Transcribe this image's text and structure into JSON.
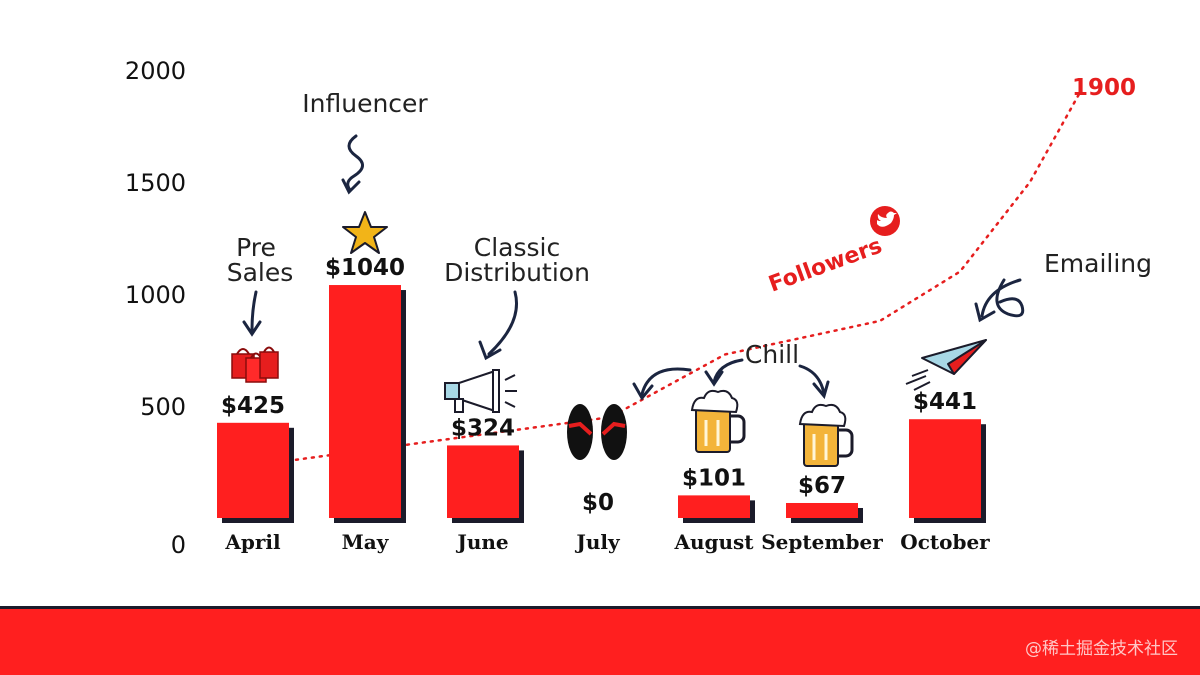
{
  "chart_data": {
    "type": "bar",
    "categories": [
      "April",
      "May",
      "June",
      "July",
      "August",
      "September",
      "October"
    ],
    "values": [
      425,
      1040,
      324,
      0,
      101,
      67,
      441
    ],
    "value_labels": [
      "$425",
      "$1040",
      "$324",
      "$0",
      "$101",
      "$67",
      "$441"
    ],
    "ylim": [
      0,
      2000
    ],
    "yticks": [
      0,
      500,
      1000,
      1500,
      2000
    ],
    "grid": false,
    "line_series": {
      "name": "Followers",
      "end_label": "1900",
      "points": [
        {
          "x": "April",
          "y": 260
        },
        {
          "x": "June",
          "y": 450
        },
        {
          "x": "July",
          "y": 730
        },
        {
          "x": "August",
          "y": 880
        },
        {
          "x": "September",
          "y": 1100
        },
        {
          "x": "October",
          "y": 1500
        },
        {
          "x": "October",
          "y": 1900
        }
      ]
    },
    "annotations": [
      {
        "text": "Pre\nSales",
        "target": "April"
      },
      {
        "text": "Influencer",
        "target": "May"
      },
      {
        "text": "Classic\nDistribution",
        "target": "June"
      },
      {
        "text": "Chill",
        "target": [
          "July",
          "August",
          "September"
        ]
      },
      {
        "text": "Emailing",
        "target": "October"
      }
    ],
    "colors": {
      "bar": "#ff1f1f",
      "bar_shadow": "#1b1b2a",
      "line": "#e61e1e",
      "footer": "#ff1f1f"
    }
  },
  "icons": [
    "shopping-bags-icon",
    "star-icon",
    "megaphone-icon",
    "flip-flops-icon",
    "beer-mug-icon",
    "beer-mug-icon",
    "paper-plane-icon",
    "twitter-bird-icon"
  ],
  "watermark": "@稀土掘金技术社区"
}
